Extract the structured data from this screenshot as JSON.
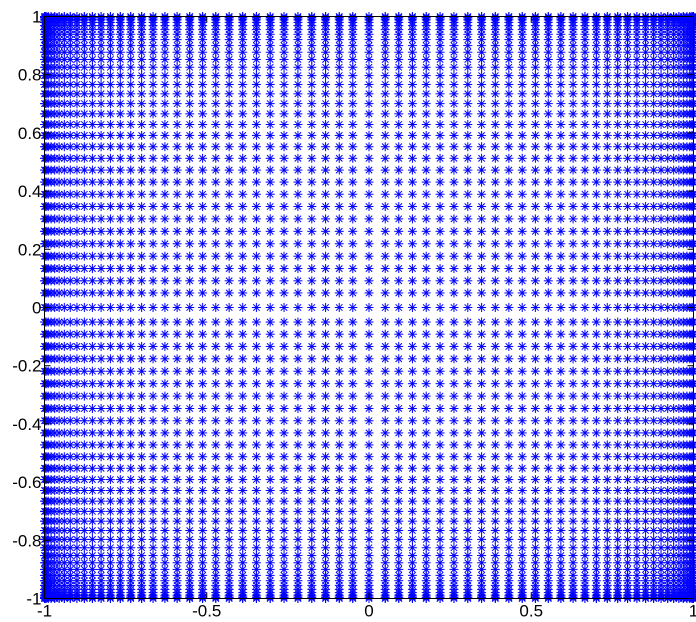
{
  "chart_data": {
    "type": "scatter",
    "title": "",
    "xlabel": "",
    "ylabel": "",
    "xlim": [
      -1,
      1
    ],
    "ylim": [
      -1,
      1
    ],
    "xticks": [
      -1,
      -0.5,
      0,
      0.5,
      1
    ],
    "yticks": [
      -1,
      -0.8,
      -0.6,
      -0.4,
      -0.2,
      0,
      0.2,
      0.4,
      0.6,
      0.8,
      1
    ],
    "xtick_labels": [
      "-1",
      "-0.5",
      "0",
      "0.5",
      "1"
    ],
    "ytick_labels": [
      "-1",
      "-0.8",
      "-0.6",
      "-0.4",
      "-0.2",
      "0",
      "0.2",
      "0.4",
      "0.6",
      "0.8",
      "1"
    ],
    "grid": false,
    "marker": "asterisk",
    "series": [
      {
        "color": "#0000ff",
        "x_nodes": [
          -1.0,
          -0.9987,
          -0.9949,
          -0.9886,
          -0.9798,
          -0.9686,
          -0.9549,
          -0.9389,
          -0.9206,
          -0.9,
          -0.8772,
          -0.8524,
          -0.8256,
          -0.7969,
          -0.7664,
          -0.7343,
          -0.7006,
          -0.6655,
          -0.6289,
          -0.5913,
          -0.5525,
          -0.5127,
          -0.4722,
          -0.431,
          -0.3892,
          -0.347,
          -0.3045,
          -0.2618,
          -0.219,
          -0.1763,
          -0.1338,
          -0.0917,
          -0.05,
          0.0,
          0.05,
          0.0917,
          0.1338,
          0.1763,
          0.219,
          0.2618,
          0.3045,
          0.347,
          0.3892,
          0.431,
          0.4722,
          0.5127,
          0.5525,
          0.5913,
          0.6289,
          0.6655,
          0.7006,
          0.7343,
          0.7664,
          0.7969,
          0.8256,
          0.8524,
          0.8772,
          0.9,
          0.9206,
          0.9389,
          0.9549,
          0.9686,
          0.9798,
          0.9886,
          0.9949,
          0.9987,
          1.0
        ],
        "y_nodes": [
          -1.0,
          -0.9987,
          -0.9949,
          -0.9886,
          -0.9798,
          -0.9686,
          -0.9549,
          -0.9389,
          -0.9206,
          -0.9,
          -0.8772,
          -0.8524,
          -0.8256,
          -0.7969,
          -0.7664,
          -0.7343,
          -0.7006,
          -0.6655,
          -0.6289,
          -0.5913,
          -0.5525,
          -0.5127,
          -0.4722,
          -0.431,
          -0.3892,
          -0.347,
          -0.3045,
          -0.2618,
          -0.219,
          -0.1763,
          -0.1338,
          -0.0917,
          -0.05,
          0.0,
          0.05,
          0.0917,
          0.1338,
          0.1763,
          0.219,
          0.2618,
          0.3045,
          0.347,
          0.3892,
          0.431,
          0.4722,
          0.5127,
          0.5525,
          0.5913,
          0.6289,
          0.6655,
          0.7006,
          0.7343,
          0.7664,
          0.7969,
          0.8256,
          0.8524,
          0.8772,
          0.9,
          0.9206,
          0.9389,
          0.9549,
          0.9686,
          0.9798,
          0.9886,
          0.9949,
          0.9987,
          1.0
        ]
      }
    ]
  }
}
